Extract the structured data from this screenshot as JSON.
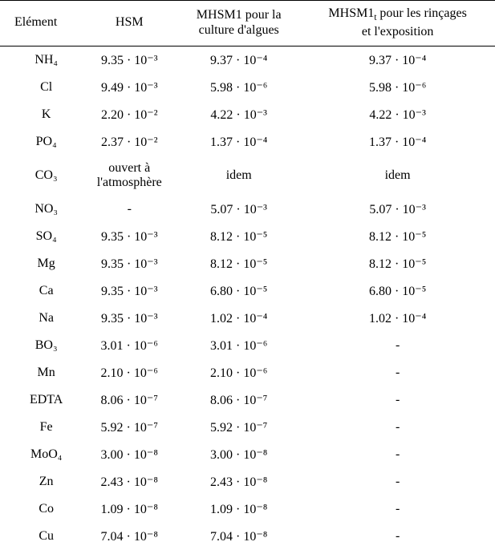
{
  "table": {
    "type": "table",
    "background_color": "#ffffff",
    "border_color": "#000000",
    "font_family": "Times New Roman",
    "header_fontsize": 16,
    "cell_fontsize": 16,
    "columns": [
      {
        "key": "element",
        "label": "Elément"
      },
      {
        "key": "hsm",
        "label": "HSM"
      },
      {
        "key": "mhsm1",
        "label": "MHSM1 pour la culture d'algues"
      },
      {
        "key": "mhsm1t",
        "label": "MHSM1ₜ pour les rinçages et l'exposition"
      }
    ],
    "rows": [
      {
        "element": "NH₄",
        "hsm": "9.35 · 10⁻³",
        "mhsm1": "9.37 · 10⁻⁴",
        "mhsm1t": "9.37 · 10⁻⁴"
      },
      {
        "element": "Cl",
        "hsm": "9.49 · 10⁻³",
        "mhsm1": "5.98 · 10⁻⁶",
        "mhsm1t": "5.98 · 10⁻⁶"
      },
      {
        "element": "K",
        "hsm": "2.20 · 10⁻²",
        "mhsm1": "4.22 · 10⁻³",
        "mhsm1t": "4.22 · 10⁻³"
      },
      {
        "element": "PO₄",
        "hsm": "2.37 · 10⁻²",
        "mhsm1": "1.37 · 10⁻⁴",
        "mhsm1t": "1.37 · 10⁻⁴"
      },
      {
        "element": "CO₃",
        "hsm": "ouvert à l'atmosphère",
        "mhsm1": "idem",
        "mhsm1t": "idem"
      },
      {
        "element": "NO₃",
        "hsm": "-",
        "mhsm1": "5.07 · 10⁻³",
        "mhsm1t": "5.07 · 10⁻³"
      },
      {
        "element": "SO₄",
        "hsm": "9.35 · 10⁻³",
        "mhsm1": "8.12 · 10⁻⁵",
        "mhsm1t": "8.12 · 10⁻⁵"
      },
      {
        "element": "Mg",
        "hsm": "9.35 · 10⁻³",
        "mhsm1": "8.12 · 10⁻⁵",
        "mhsm1t": "8.12 · 10⁻⁵"
      },
      {
        "element": "Ca",
        "hsm": "9.35 · 10⁻³",
        "mhsm1": "6.80 · 10⁻⁵",
        "mhsm1t": "6.80 · 10⁻⁵"
      },
      {
        "element": "Na",
        "hsm": "9.35 · 10⁻³",
        "mhsm1": "1.02 · 10⁻⁴",
        "mhsm1t": "1.02 · 10⁻⁴"
      },
      {
        "element": "BO₃",
        "hsm": "3.01 · 10⁻⁶",
        "mhsm1": "3.01 · 10⁻⁶",
        "mhsm1t": "-"
      },
      {
        "element": "Mn",
        "hsm": "2.10 · 10⁻⁶",
        "mhsm1": "2.10 · 10⁻⁶",
        "mhsm1t": "-"
      },
      {
        "element": "EDTA",
        "hsm": "8.06 · 10⁻⁷",
        "mhsm1": "8.06 · 10⁻⁷",
        "mhsm1t": "-"
      },
      {
        "element": "Fe",
        "hsm": "5.92 · 10⁻⁷",
        "mhsm1": "5.92 · 10⁻⁷",
        "mhsm1t": "-"
      },
      {
        "element": "MoO₄",
        "hsm": "3.00 · 10⁻⁸",
        "mhsm1": "3.00 · 10⁻⁸",
        "mhsm1t": "-"
      },
      {
        "element": "Zn",
        "hsm": "2.43 · 10⁻⁸",
        "mhsm1": "2.43 · 10⁻⁸",
        "mhsm1t": "-"
      },
      {
        "element": "Co",
        "hsm": "1.09 · 10⁻⁸",
        "mhsm1": "1.09 · 10⁻⁸",
        "mhsm1t": "-"
      },
      {
        "element": "Cu",
        "hsm": "7.04 · 10⁻⁸",
        "mhsm1": "7.04 · 10⁻⁸",
        "mhsm1t": "-"
      }
    ]
  }
}
